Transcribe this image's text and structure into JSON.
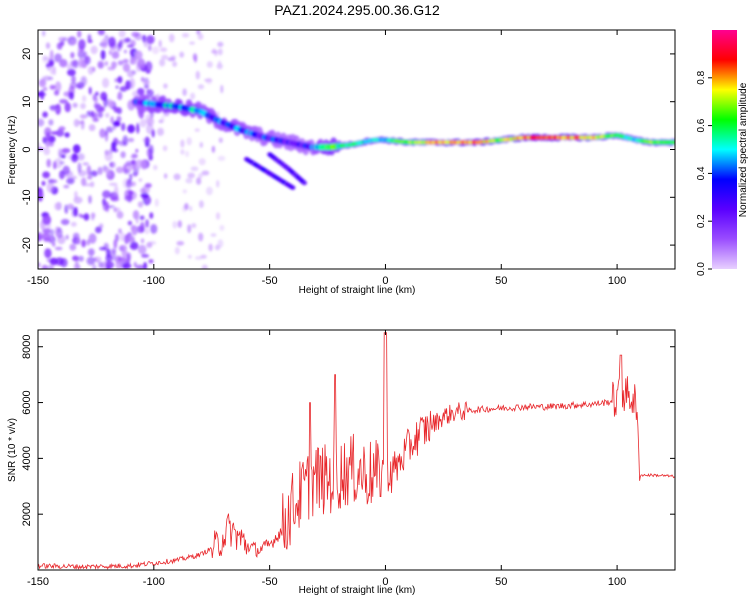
{
  "title": "PAZ1.2024.295.00.36.G12",
  "chart_data": [
    {
      "type": "heatmap",
      "xlabel": "Height of straight line (km)",
      "ylabel": "Frequency (Hz)",
      "xlim": [
        -150,
        125
      ],
      "ylim": [
        -25,
        25
      ],
      "x_ticks": [
        -150,
        -100,
        -50,
        0,
        50,
        100
      ],
      "y_ticks": [
        -20,
        -10,
        0,
        10,
        20
      ],
      "colorbar": {
        "label": "Normalized spectral amplitude",
        "range": [
          0,
          1
        ],
        "ticks": [
          "0.0",
          "0.2",
          "0.4",
          "0.6",
          "0.8"
        ],
        "tick_values": [
          0,
          0.2,
          0.4,
          0.6,
          0.8
        ],
        "colormap": [
          "#e8d0ff",
          "#9a4dff",
          "#5a00ff",
          "#0000ff",
          "#00ffff",
          "#00ff00",
          "#ffff00",
          "#ff0000",
          "#ff0090"
        ]
      },
      "ridge": [
        {
          "x": -108,
          "f": 10,
          "a": 0.3
        },
        {
          "x": -100,
          "f": 9.5,
          "a": 0.4
        },
        {
          "x": -90,
          "f": 9,
          "a": 0.45
        },
        {
          "x": -80,
          "f": 8,
          "a": 0.4
        },
        {
          "x": -72,
          "f": 6,
          "a": 0.35
        },
        {
          "x": -62,
          "f": 4,
          "a": 0.35
        },
        {
          "x": -52,
          "f": 2.5,
          "a": 0.3
        },
        {
          "x": -42,
          "f": 1.5,
          "a": 0.3
        },
        {
          "x": -32,
          "f": 0.5,
          "a": 0.3
        },
        {
          "x": -24,
          "f": 0.5,
          "a": 0.55
        },
        {
          "x": -15,
          "f": 1,
          "a": 0.6
        },
        {
          "x": -5,
          "f": 2,
          "a": 0.45
        },
        {
          "x": 0,
          "f": 2,
          "a": 0.5
        },
        {
          "x": 10,
          "f": 1.5,
          "a": 0.7
        },
        {
          "x": 20,
          "f": 1.5,
          "a": 0.75
        },
        {
          "x": 30,
          "f": 1.5,
          "a": 0.8
        },
        {
          "x": 40,
          "f": 1.5,
          "a": 0.8
        },
        {
          "x": 50,
          "f": 2,
          "a": 0.7
        },
        {
          "x": 60,
          "f": 2.5,
          "a": 0.8
        },
        {
          "x": 70,
          "f": 2.5,
          "a": 0.85
        },
        {
          "x": 80,
          "f": 2.5,
          "a": 0.8
        },
        {
          "x": 90,
          "f": 2.5,
          "a": 0.75
        },
        {
          "x": 100,
          "f": 3,
          "a": 0.6
        },
        {
          "x": 108,
          "f": 2,
          "a": 0.45
        },
        {
          "x": 115,
          "f": 1.5,
          "a": 0.7
        },
        {
          "x": 125,
          "f": 1.5,
          "a": 0.6
        }
      ],
      "branches": [
        [
          {
            "x": -60,
            "f": -2
          },
          {
            "x": -50,
            "f": -5
          },
          {
            "x": -40,
            "f": -8
          }
        ],
        [
          {
            "x": -50,
            "f": -1
          },
          {
            "x": -42,
            "f": -4
          },
          {
            "x": -35,
            "f": -7
          }
        ]
      ]
    },
    {
      "type": "line",
      "xlabel": "Height of straight line (km)",
      "ylabel": "SNR (10 * v/v)",
      "xlim": [
        -150,
        125
      ],
      "ylim": [
        0,
        8600
      ],
      "x_ticks": [
        -150,
        -100,
        -50,
        0,
        50,
        100
      ],
      "y_ticks": [
        2000,
        4000,
        6000,
        8000
      ],
      "color": "#e8282c",
      "series": [
        {
          "x": [
            -150,
            -130,
            -110,
            -100,
            -90,
            -80,
            -72,
            -68,
            -65,
            -60,
            -55,
            -50,
            -45,
            -40,
            -35,
            -30,
            -25,
            -20,
            -15,
            -10,
            -5,
            -2,
            0,
            2,
            5,
            10,
            15,
            20,
            25,
            30,
            35,
            40,
            50,
            60,
            70,
            80,
            90,
            95,
            100,
            102,
            104,
            106,
            108,
            110,
            115,
            120,
            125
          ],
          "y": [
            150,
            120,
            150,
            250,
            350,
            550,
            900,
            1500,
            1300,
            900,
            700,
            900,
            1400,
            2300,
            2900,
            3300,
            3200,
            3400,
            3600,
            3500,
            3400,
            3300,
            4000,
            3500,
            3700,
            4400,
            4900,
            5200,
            5500,
            5650,
            5700,
            5750,
            5800,
            5850,
            5850,
            5900,
            5950,
            6000,
            6100,
            6400,
            6300,
            6200,
            6000,
            3400,
            3400,
            3380,
            3350
          ]
        }
      ]
    }
  ]
}
